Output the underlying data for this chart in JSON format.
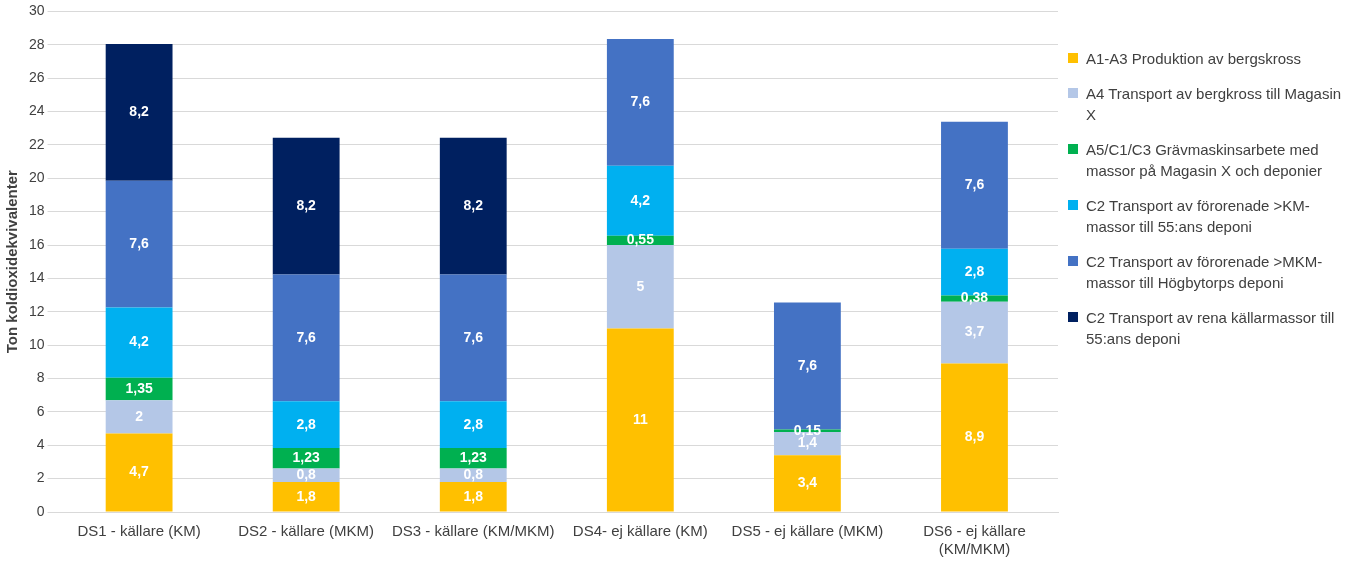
{
  "chart_data": {
    "type": "bar",
    "stacked": true,
    "ylabel": "Ton koldioxidekvivalenter",
    "categories": [
      "DS1 - källare (KM)",
      "DS2 - källare (MKM)",
      "DS3 - källare (KM/MKM)",
      "DS4- ej källare (KM)",
      "DS5 - ej källare (MKM)",
      "DS6 - ej källare (KM/MKM)"
    ],
    "series": [
      {
        "name": "A1-A3 Produktion av bergskross",
        "color": "#ffc000",
        "values": [
          4.7,
          1.8,
          1.8,
          11,
          3.4,
          8.9
        ],
        "value_labels": [
          "4,7",
          "1,8",
          "1,8",
          "11",
          "3,4",
          "8,9"
        ]
      },
      {
        "name": "A4 Transport av bergkross till Magasin X",
        "color": "#b4c7e7",
        "values": [
          2,
          0.8,
          0.8,
          5,
          1.4,
          3.7
        ],
        "value_labels": [
          "2",
          "0,8",
          "0,8",
          "5",
          "1,4",
          "3,7"
        ]
      },
      {
        "name": "A5/C1/C3 Grävmaskinsarbete med massor på Magasin X och deponier",
        "color": "#00b050",
        "values": [
          1.35,
          1.23,
          1.23,
          0.55,
          0.15,
          0.38
        ],
        "value_labels": [
          "1,35",
          "1,23",
          "1,23",
          "0,55",
          "0,15",
          "0,38"
        ]
      },
      {
        "name": "C2 Transport av förorenade >KM-massor till 55:ans deponi",
        "color": "#00b0f0",
        "values": [
          4.2,
          2.8,
          2.8,
          4.2,
          null,
          2.8
        ],
        "value_labels": [
          "4,2",
          "2,8",
          "2,8",
          "4,2",
          null,
          "2,8"
        ]
      },
      {
        "name": "C2 Transport av förorenade >MKM-massor till Högbytorps deponi",
        "color": "#4472c4",
        "values": [
          7.6,
          7.6,
          7.6,
          7.6,
          7.6,
          7.6
        ],
        "value_labels": [
          "7,6",
          "7,6",
          "7,6",
          "7,6",
          "7,6",
          "7,6"
        ]
      },
      {
        "name": "C2 Transport av rena källarmassor till 55:ans deponi",
        "color": "#002060",
        "values": [
          8.2,
          8.2,
          8.2,
          null,
          null,
          null
        ],
        "value_labels": [
          "8,2",
          "8,2",
          "8,2",
          null,
          null,
          null
        ]
      }
    ],
    "ylim": [
      0,
      30
    ],
    "yticks": [
      0,
      2,
      4,
      6,
      8,
      10,
      12,
      14,
      16,
      18,
      20,
      22,
      24,
      26,
      28,
      30
    ],
    "grid": "y",
    "legend": "right"
  }
}
